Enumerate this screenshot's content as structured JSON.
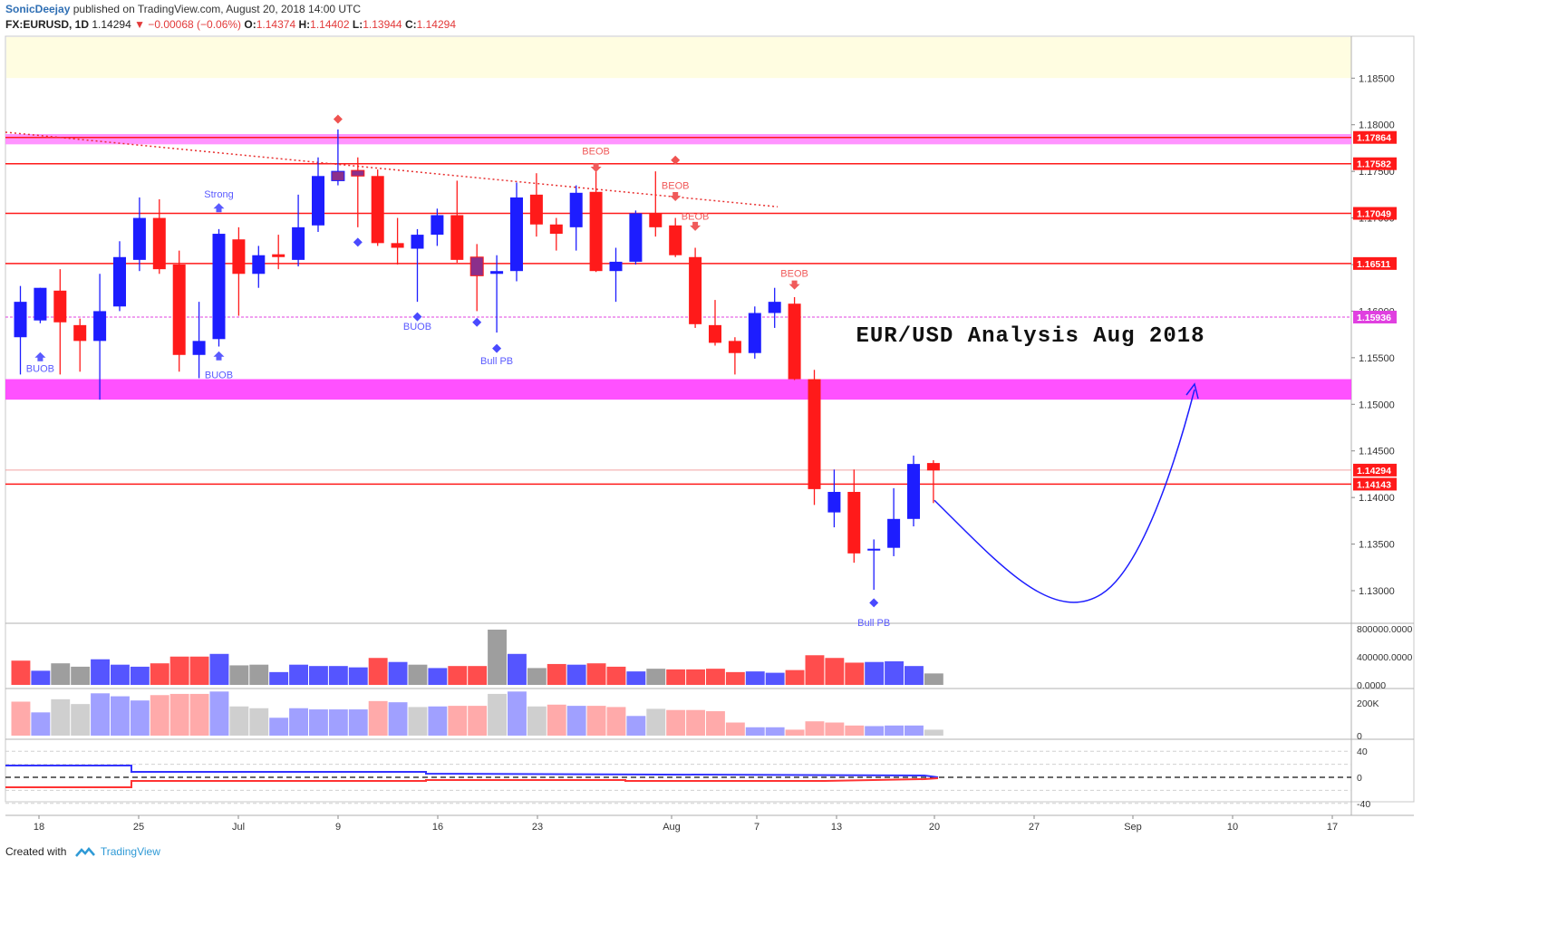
{
  "header": {
    "author": "SonicDeejay",
    "published": "published on TradingView.com, August 20, 2018 14:00 UTC",
    "symbol": "FX:EURUSD, 1D",
    "price": "1.14294",
    "change": "▼ −0.00068 (−0.06%)",
    "o_label": "O:",
    "o": "1.14374",
    "h_label": "H:",
    "h": "1.14402",
    "l_label": "L:",
    "l": "1.13944",
    "c_label": "C:",
    "c": "1.14294"
  },
  "footer": {
    "created_with": "Created with",
    "brand": "TradingView"
  },
  "colors": {
    "bull": "#1d1dff",
    "bear": "#ff1a1a",
    "purple": "#8b2f8b",
    "level_line": "#ff1a1a",
    "zone": "#ff33ff",
    "dashed": "#e040e0",
    "vol_bull": "#5555ff",
    "vol_bear": "#ff4d4d",
    "vol_neutral": "#9e9e9e",
    "vol2_bull": "#a0a0ff",
    "vol2_bear": "#ffaaaa",
    "vol2_neutral": "#cfcfcf",
    "osc_blue": "#3333ff",
    "osc_red": "#ff3333",
    "arc": "#1d1dff"
  },
  "chart_data": {
    "type": "candlestick",
    "title": "EUR/USD Analysis Aug 2018",
    "ylim": [
      1.1265,
      1.1895
    ],
    "y_ticks": [
      "1.18500",
      "1.18000",
      "1.17500",
      "1.17000",
      "1.16500",
      "1.16000",
      "1.15500",
      "1.15000",
      "1.14500",
      "1.14000",
      "1.13500",
      "1.13000"
    ],
    "x_ticks": [
      "18",
      "25",
      "Jul",
      "9",
      "16",
      "23",
      "Aug",
      "7",
      "13",
      "20",
      "27",
      "Sep",
      "10",
      "17"
    ],
    "candles": [
      {
        "o": 1.1572,
        "h": 1.1627,
        "l": 1.1532,
        "c": 1.161
      },
      {
        "o": 1.159,
        "h": 1.1625,
        "l": 1.1587,
        "c": 1.1625
      },
      {
        "o": 1.1622,
        "h": 1.1645,
        "l": 1.1532,
        "c": 1.1588
      },
      {
        "o": 1.1585,
        "h": 1.1592,
        "l": 1.1535,
        "c": 1.1568
      },
      {
        "o": 1.1568,
        "h": 1.164,
        "l": 1.1505,
        "c": 1.16
      },
      {
        "o": 1.1605,
        "h": 1.1675,
        "l": 1.16,
        "c": 1.1658
      },
      {
        "o": 1.1655,
        "h": 1.1722,
        "l": 1.1643,
        "c": 1.17
      },
      {
        "o": 1.17,
        "h": 1.172,
        "l": 1.164,
        "c": 1.1645
      },
      {
        "o": 1.165,
        "h": 1.1665,
        "l": 1.1535,
        "c": 1.1553
      },
      {
        "o": 1.1553,
        "h": 1.161,
        "l": 1.1528,
        "c": 1.1568
      },
      {
        "o": 1.157,
        "h": 1.1688,
        "l": 1.1562,
        "c": 1.1683
      },
      {
        "o": 1.1677,
        "h": 1.169,
        "l": 1.1595,
        "c": 1.164
      },
      {
        "o": 1.164,
        "h": 1.167,
        "l": 1.1625,
        "c": 1.166
      },
      {
        "o": 1.1661,
        "h": 1.1682,
        "l": 1.1645,
        "c": 1.1658
      },
      {
        "o": 1.1655,
        "h": 1.1725,
        "l": 1.1648,
        "c": 1.169
      },
      {
        "o": 1.1692,
        "h": 1.1765,
        "l": 1.1685,
        "c": 1.1745
      },
      {
        "o": 1.174,
        "h": 1.1795,
        "l": 1.1735,
        "c": 1.175
      },
      {
        "o": 1.1751,
        "h": 1.1765,
        "l": 1.169,
        "c": 1.1745
      },
      {
        "o": 1.1745,
        "h": 1.1752,
        "l": 1.167,
        "c": 1.1673
      },
      {
        "o": 1.1673,
        "h": 1.17,
        "l": 1.165,
        "c": 1.1668
      },
      {
        "o": 1.1667,
        "h": 1.1688,
        "l": 1.161,
        "c": 1.1682
      },
      {
        "o": 1.1682,
        "h": 1.171,
        "l": 1.167,
        "c": 1.1703
      },
      {
        "o": 1.1703,
        "h": 1.174,
        "l": 1.1652,
        "c": 1.1655
      },
      {
        "o": 1.1658,
        "h": 1.1672,
        "l": 1.16,
        "c": 1.1638
      },
      {
        "o": 1.164,
        "h": 1.166,
        "l": 1.1577,
        "c": 1.1643
      },
      {
        "o": 1.1643,
        "h": 1.1738,
        "l": 1.1632,
        "c": 1.1722
      },
      {
        "o": 1.1725,
        "h": 1.1748,
        "l": 1.168,
        "c": 1.1693
      },
      {
        "o": 1.1693,
        "h": 1.17,
        "l": 1.1665,
        "c": 1.1683
      },
      {
        "o": 1.169,
        "h": 1.1735,
        "l": 1.1665,
        "c": 1.1727
      },
      {
        "o": 1.1728,
        "h": 1.175,
        "l": 1.1642,
        "c": 1.1643
      },
      {
        "o": 1.1643,
        "h": 1.1668,
        "l": 1.161,
        "c": 1.1653
      },
      {
        "o": 1.1653,
        "h": 1.1708,
        "l": 1.165,
        "c": 1.1705
      },
      {
        "o": 1.1705,
        "h": 1.175,
        "l": 1.168,
        "c": 1.169
      },
      {
        "o": 1.1692,
        "h": 1.17,
        "l": 1.1658,
        "c": 1.166
      },
      {
        "o": 1.1658,
        "h": 1.1668,
        "l": 1.1582,
        "c": 1.1586
      },
      {
        "o": 1.1585,
        "h": 1.1612,
        "l": 1.1563,
        "c": 1.1566
      },
      {
        "o": 1.1568,
        "h": 1.1572,
        "l": 1.1532,
        "c": 1.1555
      },
      {
        "o": 1.1555,
        "h": 1.1605,
        "l": 1.1549,
        "c": 1.1598
      },
      {
        "o": 1.1598,
        "h": 1.1625,
        "l": 1.1582,
        "c": 1.161
      },
      {
        "o": 1.1608,
        "h": 1.1615,
        "l": 1.1526,
        "c": 1.1527
      },
      {
        "o": 1.1527,
        "h": 1.1537,
        "l": 1.1392,
        "c": 1.1409
      },
      {
        "o": 1.1384,
        "h": 1.143,
        "l": 1.1368,
        "c": 1.1406
      },
      {
        "o": 1.1406,
        "h": 1.143,
        "l": 1.133,
        "c": 1.134
      },
      {
        "o": 1.1345,
        "h": 1.1355,
        "l": 1.1301,
        "c": 1.1345
      },
      {
        "o": 1.1346,
        "h": 1.141,
        "l": 1.1337,
        "c": 1.1377
      },
      {
        "o": 1.1377,
        "h": 1.1445,
        "l": 1.1369,
        "c": 1.1436
      },
      {
        "o": 1.1437,
        "h": 1.144,
        "l": 1.1394,
        "c": 1.1429
      }
    ],
    "levels": [
      "1.17864",
      "1.17582",
      "1.17049",
      "1.16511",
      "1.15936",
      "1.14294",
      "1.14143"
    ],
    "volume_axis": [
      "800000.0000",
      "400000.0000",
      "0.0000"
    ],
    "volume": [
      360000,
      210000,
      320000,
      270000,
      380000,
      300000,
      270000,
      320000,
      420000,
      420000,
      460000,
      290000,
      300000,
      190000,
      300000,
      280000,
      280000,
      260000,
      400000,
      340000,
      300000,
      250000,
      280000,
      280000,
      820000,
      460000,
      250000,
      310000,
      300000,
      320000,
      270000,
      200000,
      240000,
      230000,
      230000,
      240000,
      190000,
      200000,
      180000,
      220000,
      440000,
      400000,
      330000,
      340000,
      350000,
      280000,
      170000
    ],
    "volume_type": [
      "r",
      "b",
      "n",
      "n",
      "b",
      "b",
      "b",
      "r",
      "r",
      "r",
      "b",
      "n",
      "n",
      "b",
      "b",
      "b",
      "b",
      "b",
      "r",
      "b",
      "n",
      "b",
      "r",
      "r",
      "n",
      "b",
      "n",
      "r",
      "b",
      "r",
      "r",
      "b",
      "n",
      "r",
      "r",
      "r",
      "r",
      "b",
      "b",
      "r",
      "r",
      "r",
      "r",
      "b",
      "b",
      "b",
      "n"
    ],
    "volume2_axis": [
      "200K",
      "0"
    ],
    "volume2": [
      285000,
      195000,
      305000,
      265000,
      355000,
      330000,
      295000,
      340000,
      350000,
      350000,
      370000,
      245000,
      230000,
      150000,
      230000,
      220000,
      220000,
      220000,
      290000,
      280000,
      240000,
      245000,
      250000,
      250000,
      350000,
      370000,
      245000,
      260000,
      250000,
      250000,
      240000,
      165000,
      225000,
      215000,
      215000,
      205000,
      110000,
      70000,
      70000,
      50000,
      120000,
      110000,
      85000,
      80000,
      85000,
      85000,
      50000
    ],
    "osc_axis": [
      "40",
      "0",
      "-40"
    ],
    "annotations": [
      {
        "label": "BUOB",
        "candle": 1
      },
      {
        "label": "Strong",
        "candle": 10
      },
      {
        "label": "BUOB",
        "candle": 10
      },
      {
        "label": "BUOB",
        "candle": 20
      },
      {
        "label": "Bull PB",
        "candle": 24
      },
      {
        "label": "BEOB",
        "candle": 29
      },
      {
        "label": "BEOB",
        "candle": 33
      },
      {
        "label": "BEOB",
        "candle": 34
      },
      {
        "label": "BEOB",
        "candle": 39
      },
      {
        "label": "Bull PB",
        "candle": 43
      }
    ]
  }
}
